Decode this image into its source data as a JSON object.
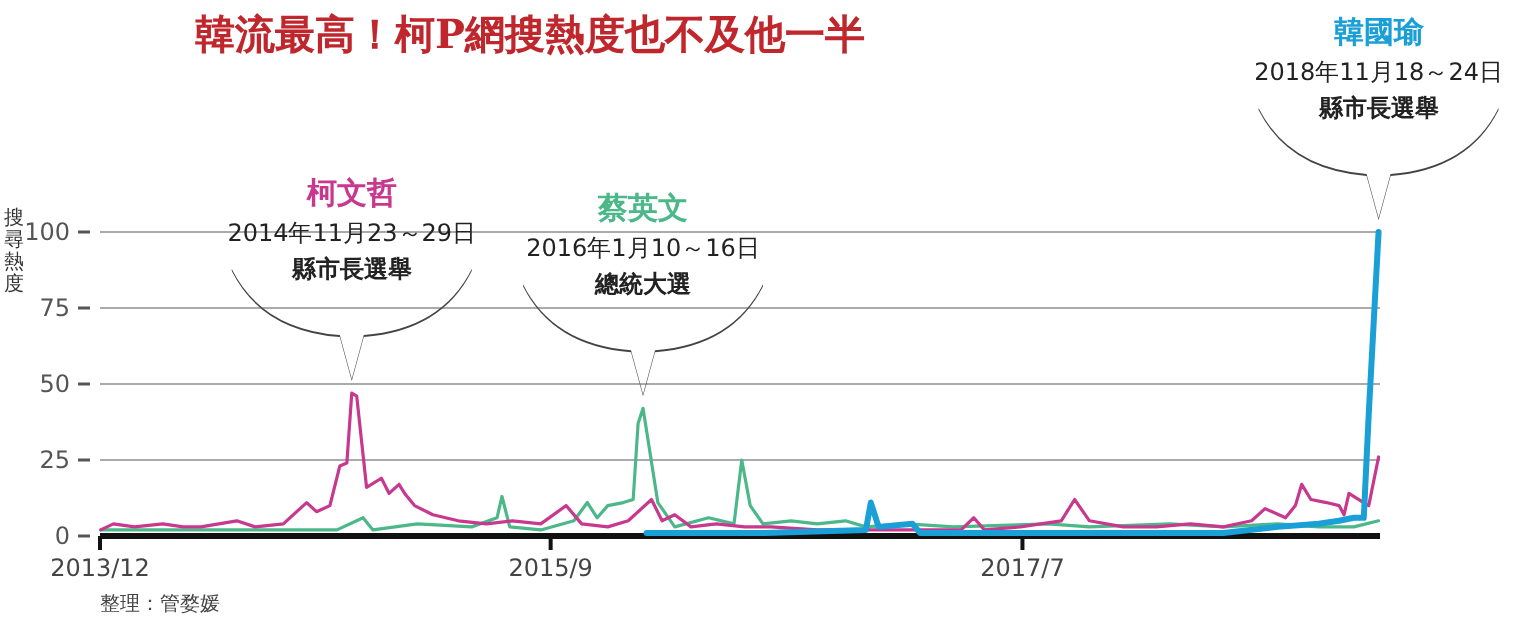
{
  "chart_data": {
    "type": "line",
    "title": "韓流最高！柯P網搜熱度也不及他一半",
    "ylabel": "搜尋熱度",
    "xlim": [
      "2013-12-01",
      "2018-11-20"
    ],
    "ylim": [
      0,
      100
    ],
    "xticks": [
      {
        "value": "2013-12",
        "label": "2013/12"
      },
      {
        "value": "2015-09",
        "label": "2015/9"
      },
      {
        "value": "2017-07",
        "label": "2017/7"
      }
    ],
    "yticks": [
      0,
      25,
      50,
      75,
      100
    ],
    "grid": "y",
    "series": [
      {
        "name": "蔡英文",
        "color": "#4cb88a",
        "x": [
          "2013-12-02",
          "2014-04-23",
          "2014-11-02",
          "2014-12-09",
          "2014-12-23",
          "2015-02-24",
          "2015-05-12",
          "2015-06-17",
          "2015-06-24",
          "2015-07-05",
          "2015-08-18",
          "2015-10-04",
          "2015-10-23",
          "2015-11-06",
          "2015-11-21",
          "2015-12-13",
          "2015-12-27",
          "2016-01-03",
          "2016-01-10",
          "2016-01-31",
          "2016-02-24",
          "2016-04-12",
          "2016-05-18",
          "2016-05-29",
          "2016-06-10",
          "2016-06-28",
          "2016-08-07",
          "2016-09-13",
          "2016-10-23",
          "2016-11-21",
          "2017-01-19",
          "2017-03-25",
          "2017-08-07",
          "2017-10-04",
          "2018-01-26",
          "2018-04-12",
          "2018-06-28",
          "2018-08-25",
          "2018-10-14",
          "2018-11-18"
        ],
        "values": [
          2,
          2,
          2,
          6,
          2,
          4,
          3,
          6,
          13,
          3,
          2,
          5,
          11,
          6,
          10,
          11,
          12,
          37,
          42,
          11,
          3,
          6,
          4,
          25,
          10,
          4,
          5,
          4,
          5,
          3,
          4,
          3,
          4,
          3,
          4,
          3,
          4,
          3,
          3,
          5
        ]
      },
      {
        "name": "柯文哲",
        "color": "#c8388f",
        "x": [
          "2013-12-02",
          "2013-12-20",
          "2014-01-19",
          "2014-02-28",
          "2014-03-29",
          "2014-04-23",
          "2014-06-13",
          "2014-07-09",
          "2014-08-18",
          "2014-09-20",
          "2014-10-04",
          "2014-10-23",
          "2014-11-06",
          "2014-11-16",
          "2014-11-23",
          "2014-11-30",
          "2014-12-14",
          "2015-01-04",
          "2015-01-15",
          "2015-01-29",
          "2015-02-06",
          "2015-02-20",
          "2015-03-18",
          "2015-04-23",
          "2015-06-02",
          "2015-07-09",
          "2015-08-18",
          "2015-09-23",
          "2015-10-15",
          "2015-11-21",
          "2015-12-20",
          "2016-01-22",
          "2016-02-06",
          "2016-02-24",
          "2016-03-18",
          "2016-04-23",
          "2016-06-02",
          "2016-07-09",
          "2016-09-13",
          "2016-12-20",
          "2017-04-05",
          "2017-04-23",
          "2017-05-08",
          "2017-06-28",
          "2017-08-25",
          "2017-09-13",
          "2017-10-04",
          "2017-11-21",
          "2018-01-07",
          "2018-02-24",
          "2018-04-12",
          "2018-05-22",
          "2018-06-10",
          "2018-07-09",
          "2018-07-23",
          "2018-08-01",
          "2018-08-14",
          "2018-09-05",
          "2018-09-23",
          "2018-09-30",
          "2018-10-07",
          "2018-10-21",
          "2018-11-04",
          "2018-11-18"
        ],
        "values": [
          2,
          4,
          3,
          4,
          3,
          3,
          5,
          3,
          4,
          11,
          8,
          10,
          23,
          24,
          47,
          46,
          16,
          19,
          14,
          17,
          14,
          10,
          7,
          5,
          4,
          5,
          4,
          10,
          4,
          3,
          5,
          12,
          5,
          7,
          3,
          4,
          3,
          3,
          2,
          2,
          2,
          6,
          2,
          3,
          5,
          12,
          5,
          3,
          3,
          4,
          3,
          5,
          9,
          6,
          10,
          17,
          12,
          11,
          10,
          7,
          14,
          12,
          10,
          26
        ]
      },
      {
        "name": "韓國瑜",
        "color": "#1a9fd6",
        "x": [
          "2016-01-15",
          "2016-07-01",
          "2016-11-21",
          "2016-11-28",
          "2016-12-09",
          "2017-01-26",
          "2017-02-06",
          "2017-10-20",
          "2018-04-12",
          "2018-06-28",
          "2018-08-25",
          "2018-09-23",
          "2018-10-14",
          "2018-10-28",
          "2018-11-04",
          "2018-11-11",
          "2018-11-18"
        ],
        "values": [
          1,
          1,
          2,
          11,
          3,
          4,
          1,
          1,
          1,
          3,
          4,
          5,
          6,
          6,
          40,
          70,
          100
        ]
      }
    ],
    "annotations": [
      "2014年11月23～29日",
      "縣市長選舉",
      "2016年1月10～16日",
      "總統大選",
      "2018年11月18～24日",
      "縣市長選舉",
      "整理：管婺媛"
    ]
  }
}
